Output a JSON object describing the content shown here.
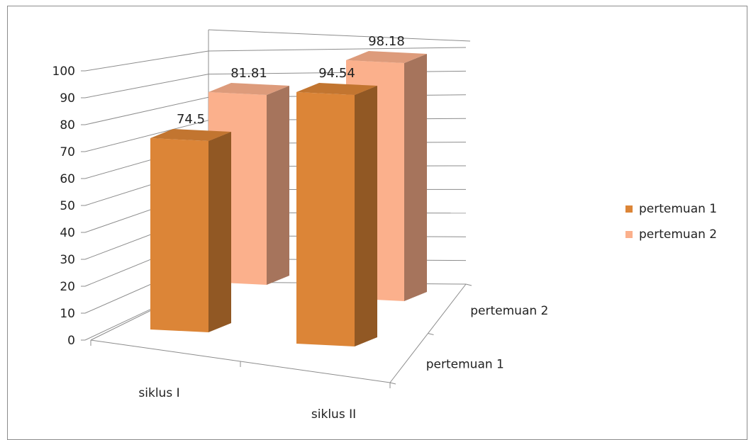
{
  "chart_data": {
    "type": "bar",
    "categories": [
      "siklus I",
      "siklus II"
    ],
    "depth_categories": [
      "pertemuan 1",
      "pertemuan 2"
    ],
    "series": [
      {
        "name": "pertemuan 1",
        "values": [
          74.5,
          94.54
        ],
        "labels": [
          "74.5",
          "94.54"
        ],
        "color": "#dc8537"
      },
      {
        "name": "pertemuan 2",
        "values": [
          81.81,
          98.18
        ],
        "labels": [
          "81.81",
          "98.18"
        ],
        "color": "#fbb08c"
      }
    ],
    "y_ticks": [
      "0",
      "10",
      "20",
      "30",
      "40",
      "50",
      "60",
      "70",
      "80",
      "90",
      "100"
    ],
    "ylim": [
      0,
      100
    ],
    "grid": true,
    "legend_position": "right",
    "style": "3d-column"
  },
  "legend": {
    "items": [
      {
        "label": "pertemuan 1",
        "color": "#dc8537"
      },
      {
        "label": "pertemuan 2",
        "color": "#fbb08c"
      }
    ]
  }
}
